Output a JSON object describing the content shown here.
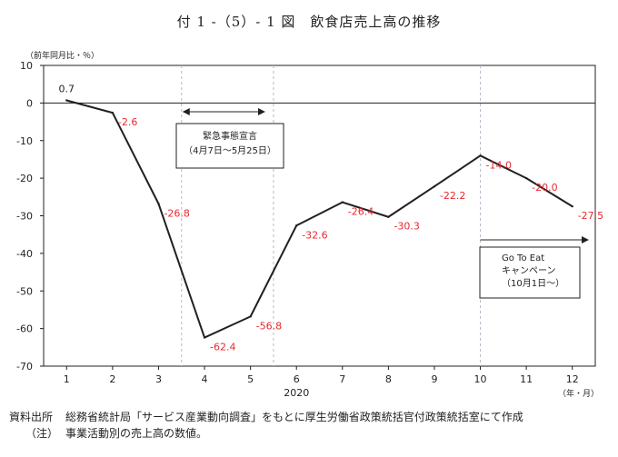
{
  "figure": {
    "title": "付 1 -（5）- 1 図　飲食店売上高の推移"
  },
  "chart_data": {
    "type": "line",
    "title": "付 1 -（5）- 1 図　飲食店売上高の推移",
    "ylabel": "（前年同月比・％）",
    "xlabel": "（年・月）",
    "year_label": "2020",
    "categories": [
      "1",
      "2",
      "3",
      "4",
      "5",
      "6",
      "7",
      "8",
      "9",
      "10",
      "11",
      "12"
    ],
    "values": [
      0.7,
      -2.6,
      -26.8,
      -62.4,
      -56.8,
      -32.6,
      -26.4,
      -30.3,
      -22.2,
      -14.0,
      -20.0,
      -27.5
    ],
    "value_labels": [
      "0.7",
      "-2.6",
      "-26.8",
      "-62.4",
      "-56.8",
      "-32.6",
      "-26.4",
      "-30.3",
      "-22.2",
      "-14.0",
      "-20.0",
      "-27.5"
    ],
    "ylim": [
      -70,
      10
    ],
    "yticks": [
      "10",
      "0",
      "-10",
      "-20",
      "-30",
      "-40",
      "-50",
      "-60",
      "-70"
    ],
    "grid": false,
    "annotations": [
      {
        "lines": [
          "緊急事態宣言",
          "（4月7日～5月25日）"
        ],
        "from_month": 3.5,
        "to_month": 5.5
      },
      {
        "lines": [
          "Go To Eat",
          "キャンペーン",
          "（10月1日～）"
        ],
        "from_month": 10,
        "to_month": 12.5
      }
    ],
    "colors": {
      "line": "#231f20",
      "value_label": "#e8282e",
      "axis": "#231f20",
      "dashed": "#b8b8c8"
    }
  },
  "notes": {
    "source_label": "資料出所",
    "source_text": "総務省統計局「サービス産業動向調査」をもとに厚生労働省政策統括官付政策統括室にて作成",
    "note_label": "（注）",
    "note_text": "事業活動別の売上高の数値。"
  }
}
